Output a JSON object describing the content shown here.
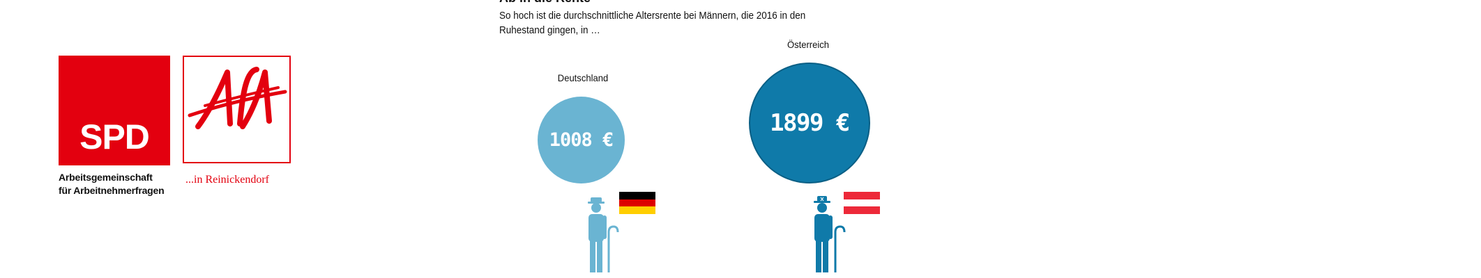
{
  "logos": {
    "spd": {
      "mark": "SPD",
      "caption_lines": [
        "Arbeitsgemeinschaft",
        "für Arbeitnehmerfragen"
      ]
    },
    "afa": {
      "mark": "AfA",
      "caption": "...in Reinickendorf"
    }
  },
  "infographic": {
    "title": "Ab in die Rente",
    "subtitle": "So hoch ist die durchschnittliche Altersrente bei Männern, die 2016 in den Ruhestand gingen, in …",
    "countries": [
      {
        "name": "Deutschland",
        "value_label": "1008 €",
        "value": 1008,
        "color": "#6ab4d2",
        "flag_colors": [
          "#000000",
          "#dd0000",
          "#ffce00"
        ],
        "icon": "elderly-man-icon"
      },
      {
        "name": "Österreich",
        "value_label": "1899 €",
        "value": 1899,
        "color": "#0f7aa9",
        "flag_colors": [
          "#ed2939",
          "#ffffff",
          "#ed2939"
        ],
        "icon": "elderly-man-icon"
      }
    ]
  }
}
